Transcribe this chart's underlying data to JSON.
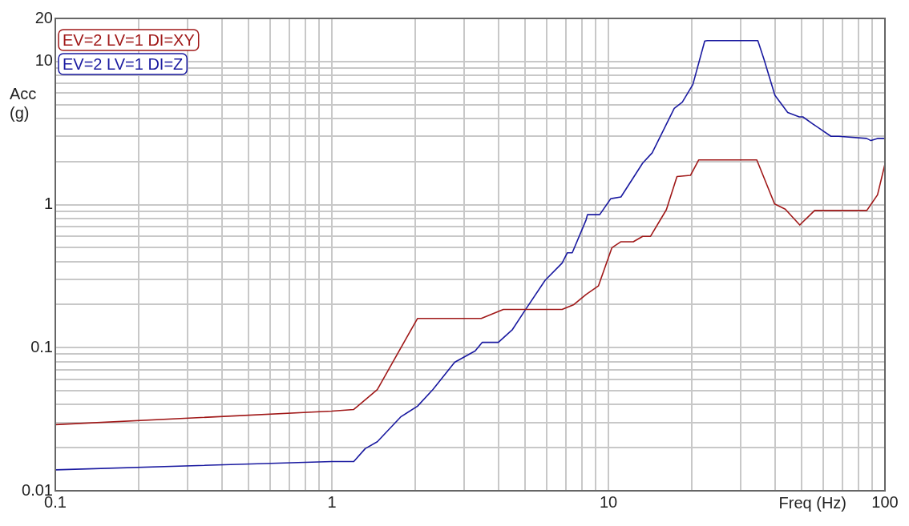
{
  "chart_data": {
    "type": "line",
    "xlabel": "Freq (Hz)",
    "ylabel": "Acc (g)",
    "log": "xy",
    "grid": true,
    "legend": "top left",
    "marker": "none",
    "line_style": "solid",
    "xlim": [
      0.1,
      100
    ],
    "ylim": [
      0.01,
      20
    ],
    "xticks": [
      0.1,
      {
        "value": 0.2,
        "label": null
      },
      {
        "value": 0.3,
        "label": null
      },
      {
        "value": 0.4,
        "label": null
      },
      {
        "value": 0.5,
        "label": null
      },
      {
        "value": 0.6,
        "label": null
      },
      {
        "value": 0.7,
        "label": null
      },
      {
        "value": 0.8,
        "label": null
      },
      {
        "value": 0.9,
        "label": null
      },
      1,
      {
        "value": 2,
        "label": null
      },
      {
        "value": 3,
        "label": null
      },
      {
        "value": 4,
        "label": null
      },
      {
        "value": 5,
        "label": null
      },
      {
        "value": 6,
        "label": null
      },
      {
        "value": 7,
        "label": null
      },
      {
        "value": 8,
        "label": null
      },
      {
        "value": 9,
        "label": null
      },
      10,
      {
        "value": 20,
        "label": null
      },
      {
        "value": 30,
        "label": null
      },
      {
        "value": 40,
        "label": null
      },
      {
        "value": 50,
        "label": null
      },
      {
        "value": 60,
        "label": null
      },
      {
        "value": 70,
        "label": null
      },
      {
        "value": 80,
        "label": null
      },
      {
        "value": 90,
        "label": null
      },
      100
    ],
    "yticks": [
      0.01,
      {
        "value": 0.02,
        "label": null
      },
      {
        "value": 0.03,
        "label": null
      },
      {
        "value": 0.04,
        "label": null
      },
      {
        "value": 0.05,
        "label": null
      },
      {
        "value": 0.06,
        "label": null
      },
      {
        "value": 0.07,
        "label": null
      },
      {
        "value": 0.08,
        "label": null
      },
      {
        "value": 0.09,
        "label": null
      },
      0.1,
      {
        "value": 0.2,
        "label": null
      },
      {
        "value": 0.3,
        "label": null
      },
      {
        "value": 0.4,
        "label": null
      },
      {
        "value": 0.5,
        "label": null
      },
      {
        "value": 0.6,
        "label": null
      },
      {
        "value": 0.7,
        "label": null
      },
      {
        "value": 0.8,
        "label": null
      },
      {
        "value": 0.9,
        "label": null
      },
      1,
      {
        "value": 2,
        "label": null
      },
      {
        "value": 3,
        "label": null
      },
      {
        "value": 4,
        "label": null
      },
      {
        "value": 5,
        "label": null
      },
      {
        "value": 6,
        "label": null
      },
      {
        "value": 7,
        "label": null
      },
      {
        "value": 8,
        "label": null
      },
      {
        "value": 9,
        "label": null
      },
      10,
      20
    ],
    "series": [
      {
        "name": "EV=2 LV=1 DI=XY",
        "color": "#a01818",
        "x": [
          0.1,
          1,
          1.2,
          1.46,
          2.04,
          3.47,
          4.17,
          6.8,
          7.5,
          8.3,
          9.2,
          10.3,
          11.1,
          12.3,
          13.3,
          14.2,
          16.2,
          17.7,
          19.8,
          21.2,
          34.4,
          39.9,
          43.6,
          49.2,
          55.7,
          86,
          94,
          100
        ],
        "values": [
          0.029,
          0.036,
          0.037,
          0.051,
          0.16,
          0.16,
          0.185,
          0.185,
          0.2,
          0.235,
          0.27,
          0.5,
          0.55,
          0.55,
          0.6,
          0.6,
          0.92,
          1.57,
          1.6,
          2.05,
          2.05,
          1.01,
          0.93,
          0.72,
          0.91,
          0.91,
          1.17,
          1.92
        ]
      },
      {
        "name": "EV=2 LV=1 DI=Z",
        "color": "#1a1aa0",
        "x": [
          0.1,
          1,
          1.2,
          1.32,
          1.46,
          1.78,
          2.04,
          2.32,
          2.78,
          3.3,
          3.5,
          4,
          4.5,
          5,
          5.9,
          6.8,
          7.1,
          7.4,
          8.3,
          8.4,
          9.3,
          10.2,
          11.1,
          13.3,
          14.4,
          17.3,
          18.5,
          20.2,
          22.3,
          22.8,
          34.7,
          36.5,
          40,
          44.5,
          49,
          50.5,
          55,
          63.8,
          68,
          85.8,
          89,
          94,
          100
        ],
        "values": [
          0.014,
          0.016,
          0.016,
          0.0197,
          0.022,
          0.033,
          0.039,
          0.051,
          0.079,
          0.095,
          0.109,
          0.109,
          0.134,
          0.183,
          0.295,
          0.39,
          0.46,
          0.46,
          0.78,
          0.85,
          0.85,
          1.1,
          1.13,
          1.95,
          2.3,
          4.7,
          5.2,
          6.9,
          13.9,
          14,
          14,
          10.4,
          5.8,
          4.4,
          4.1,
          4.1,
          3.65,
          3,
          3,
          2.9,
          2.8,
          2.9,
          2.9
        ]
      }
    ]
  }
}
